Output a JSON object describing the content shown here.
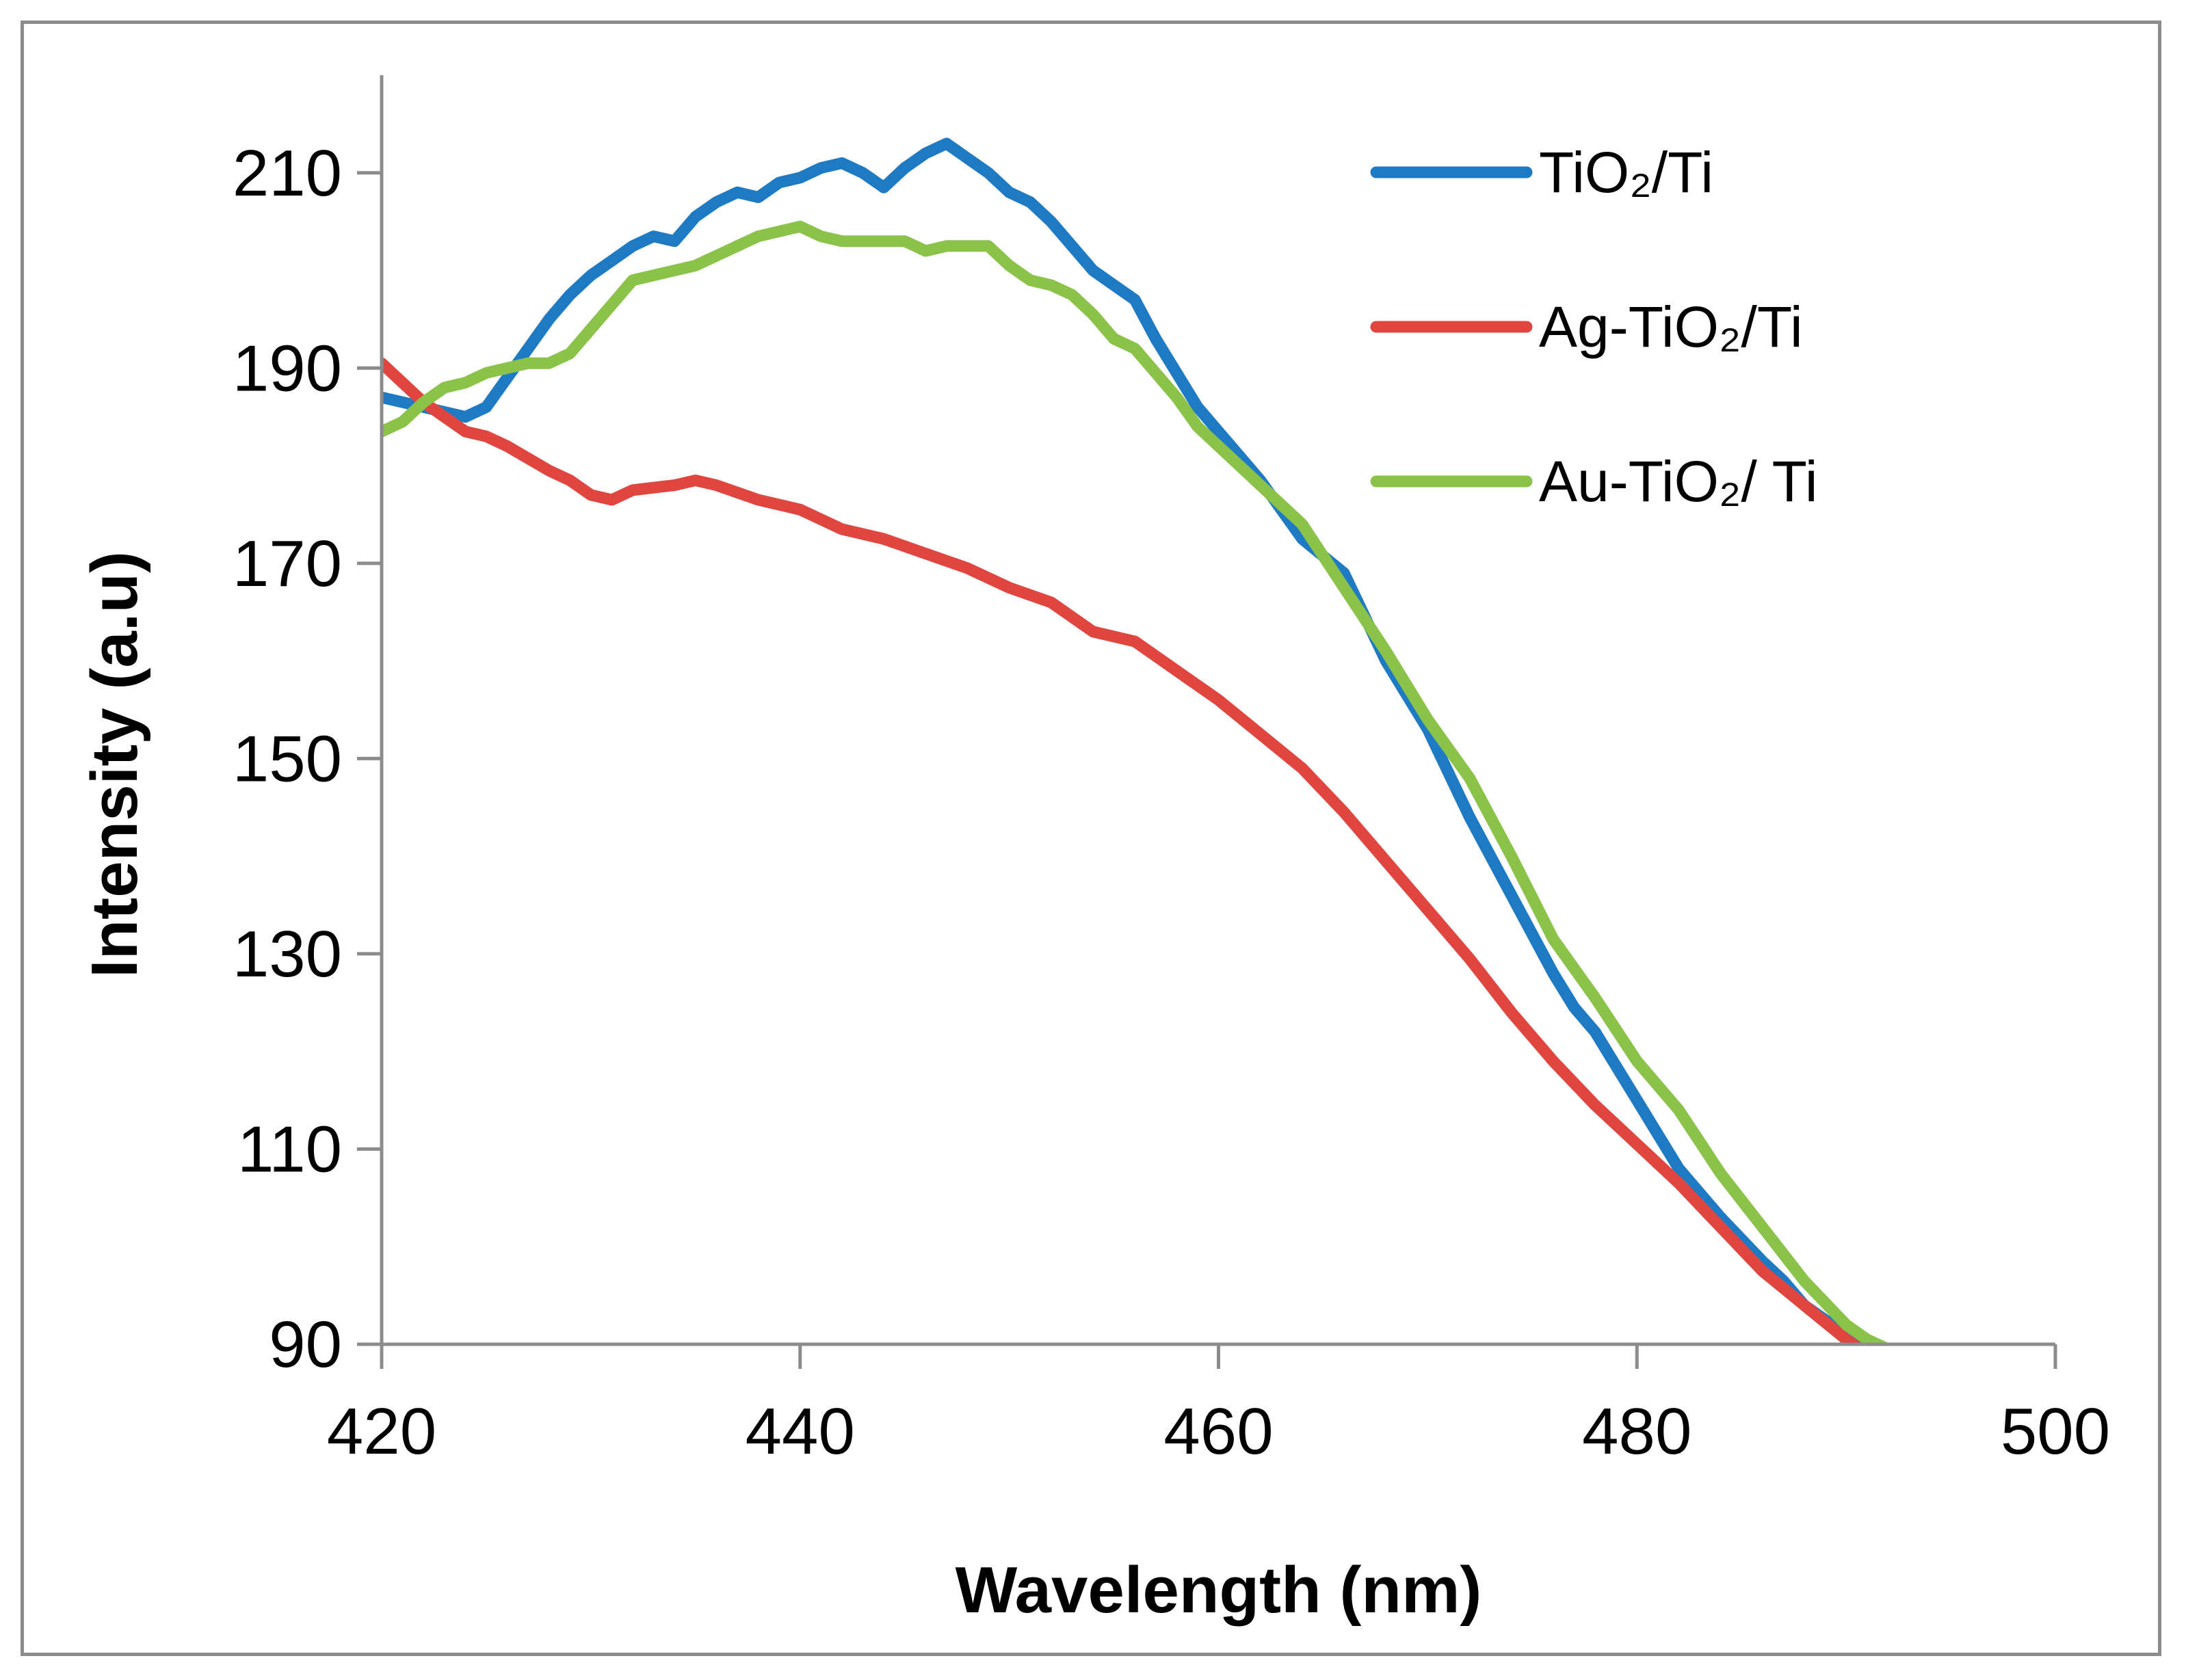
{
  "chart_data": {
    "type": "line",
    "xlabel": "Wavelength (nm)",
    "ylabel": "Intensity (a.u)",
    "xlim": [
      420,
      500
    ],
    "ylim": [
      90,
      220
    ],
    "x_ticks": [
      "420",
      "440",
      "460",
      "480",
      "500"
    ],
    "y_ticks": [
      "90",
      "110",
      "130",
      "150",
      "170",
      "190",
      "210"
    ],
    "grid": false,
    "legend_position": "top-right",
    "series": [
      {
        "name": "TiO₂/Ti",
        "color": "#1f7ac4",
        "x": [
          420,
          422,
          424,
          425,
          426,
          427,
          428,
          429,
          430,
          431,
          432,
          433,
          434,
          435,
          436,
          437,
          438,
          439,
          440,
          441,
          442,
          443,
          444,
          445,
          446,
          447,
          448,
          449,
          450,
          451,
          452,
          453,
          454,
          455,
          456,
          457,
          458,
          459,
          460,
          462,
          464,
          466,
          468,
          470,
          472,
          474,
          476,
          477,
          478,
          480,
          482,
          484,
          486,
          487,
          488,
          490,
          491
        ],
        "values": [
          187,
          186,
          185,
          186,
          189,
          192,
          195,
          197.5,
          199.5,
          201,
          202.5,
          203.5,
          203,
          205.5,
          207,
          208,
          207.5,
          209,
          209.5,
          210.5,
          211,
          210,
          208.5,
          210.5,
          212,
          213,
          211.5,
          210,
          208,
          207,
          205,
          202.5,
          200,
          198.5,
          197,
          193,
          189.5,
          186,
          183.5,
          178.5,
          172.5,
          169,
          160,
          153,
          144,
          136,
          128,
          124.5,
          122,
          115,
          108,
          103,
          98.5,
          96.5,
          94,
          91,
          89.5
        ]
      },
      {
        "name": "Ag-TiO₂/Ti",
        "color": "#e0463f",
        "x": [
          420,
          422,
          424,
          425,
          426,
          428,
          429,
          430,
          431,
          432,
          434,
          435,
          436,
          438,
          440,
          442,
          444,
          446,
          448,
          450,
          452,
          454,
          456,
          458,
          460,
          462,
          464,
          466,
          468,
          470,
          472,
          474,
          476,
          478,
          480,
          482,
          484,
          486,
          488,
          490,
          491
        ],
        "values": [
          190.5,
          186.5,
          183.5,
          183,
          182,
          179.5,
          178.5,
          177,
          176.5,
          177.5,
          178,
          178.5,
          178,
          176.5,
          175.5,
          173.5,
          172.5,
          171,
          169.5,
          167.5,
          166,
          163,
          162,
          159,
          156,
          152.5,
          149,
          144.5,
          139.5,
          134.5,
          129.5,
          124,
          119,
          114.5,
          110.5,
          106.5,
          102,
          97.5,
          94,
          90.5,
          89
        ]
      },
      {
        "name": "Au-TiO₂/ Ti",
        "color": "#8bc34a",
        "x": [
          420,
          421,
          422,
          423,
          424,
          425,
          426,
          427,
          428,
          429,
          430,
          431,
          432,
          433,
          434,
          435,
          436,
          437,
          438,
          439,
          440,
          441,
          442,
          443,
          444,
          445,
          446,
          447,
          448,
          449,
          450,
          451,
          452,
          453,
          454,
          455,
          456,
          457,
          458,
          459,
          460,
          462,
          464,
          466,
          468,
          470,
          472,
          474,
          476,
          478,
          480,
          482,
          484,
          486,
          488,
          490,
          491,
          492
        ],
        "values": [
          183.5,
          184.5,
          186.5,
          188,
          188.5,
          189.5,
          190,
          190.5,
          190.5,
          191.5,
          194,
          196.5,
          199,
          199.5,
          200,
          200.5,
          201.5,
          202.5,
          203.5,
          204,
          204.5,
          203.5,
          203,
          203,
          203,
          203,
          202,
          202.5,
          202.5,
          202.5,
          200.5,
          199,
          198.5,
          197.5,
          195.5,
          193,
          192,
          189.5,
          187,
          184,
          182,
          178,
          174,
          167.5,
          161,
          154,
          148,
          140,
          131.5,
          125.5,
          119,
          114,
          107.5,
          102,
          96.5,
          92,
          90.5,
          89.5
        ]
      }
    ]
  }
}
